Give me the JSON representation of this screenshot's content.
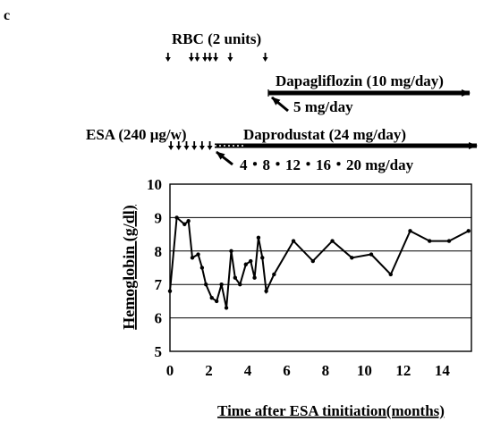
{
  "panel_label": "c",
  "annotations": {
    "rbc_label": "RBC (2 units)",
    "dapagliflozin_label": "Dapagliflozin (10 mg/day)",
    "dapagliflozin_start": "5 mg/day",
    "esa_label": "ESA (240 μg/w)",
    "daprodustat_label": "Daprodustat (24 mg/day)",
    "daprodustat_titration": "4・8・12・16・20 mg/day"
  },
  "markers": {
    "rbc_months": [
      -0.1,
      1.1,
      1.4,
      1.8,
      2.05,
      2.35,
      3.1,
      4.9
    ],
    "esa_months": [
      0.05,
      0.45,
      0.85,
      1.25,
      1.65,
      2.05
    ]
  },
  "chart_data": {
    "type": "line",
    "title": "",
    "xlabel": "Time after ESA tinitiation(months)",
    "ylabel": "Hemoglobin (g/dl)",
    "xlim": [
      0,
      15.5
    ],
    "ylim": [
      5,
      10
    ],
    "xticks": [
      0,
      2,
      4,
      6,
      8,
      10,
      12,
      14
    ],
    "yticks": [
      5,
      6,
      7,
      8,
      9,
      10
    ],
    "grid": "horizontal",
    "series": [
      {
        "x": [
          0.0,
          0.35,
          0.75,
          0.95,
          1.15,
          1.45,
          1.65,
          1.85,
          2.15,
          2.4,
          2.65,
          2.9,
          3.15,
          3.35,
          3.6,
          3.9,
          4.15,
          4.35,
          4.55,
          4.75,
          4.95,
          5.35,
          6.35,
          7.35,
          8.35,
          9.35,
          10.35,
          11.35,
          12.35,
          13.35,
          14.35,
          15.35
        ],
        "y": [
          6.8,
          9.0,
          8.8,
          8.9,
          7.8,
          7.9,
          7.5,
          7.0,
          6.6,
          6.5,
          7.0,
          6.3,
          8.0,
          7.2,
          7.0,
          7.6,
          7.7,
          7.2,
          8.4,
          7.8,
          6.8,
          7.3,
          8.3,
          7.7,
          8.3,
          7.8,
          7.9,
          7.3,
          8.6,
          8.3,
          8.3,
          8.6
        ]
      }
    ]
  }
}
